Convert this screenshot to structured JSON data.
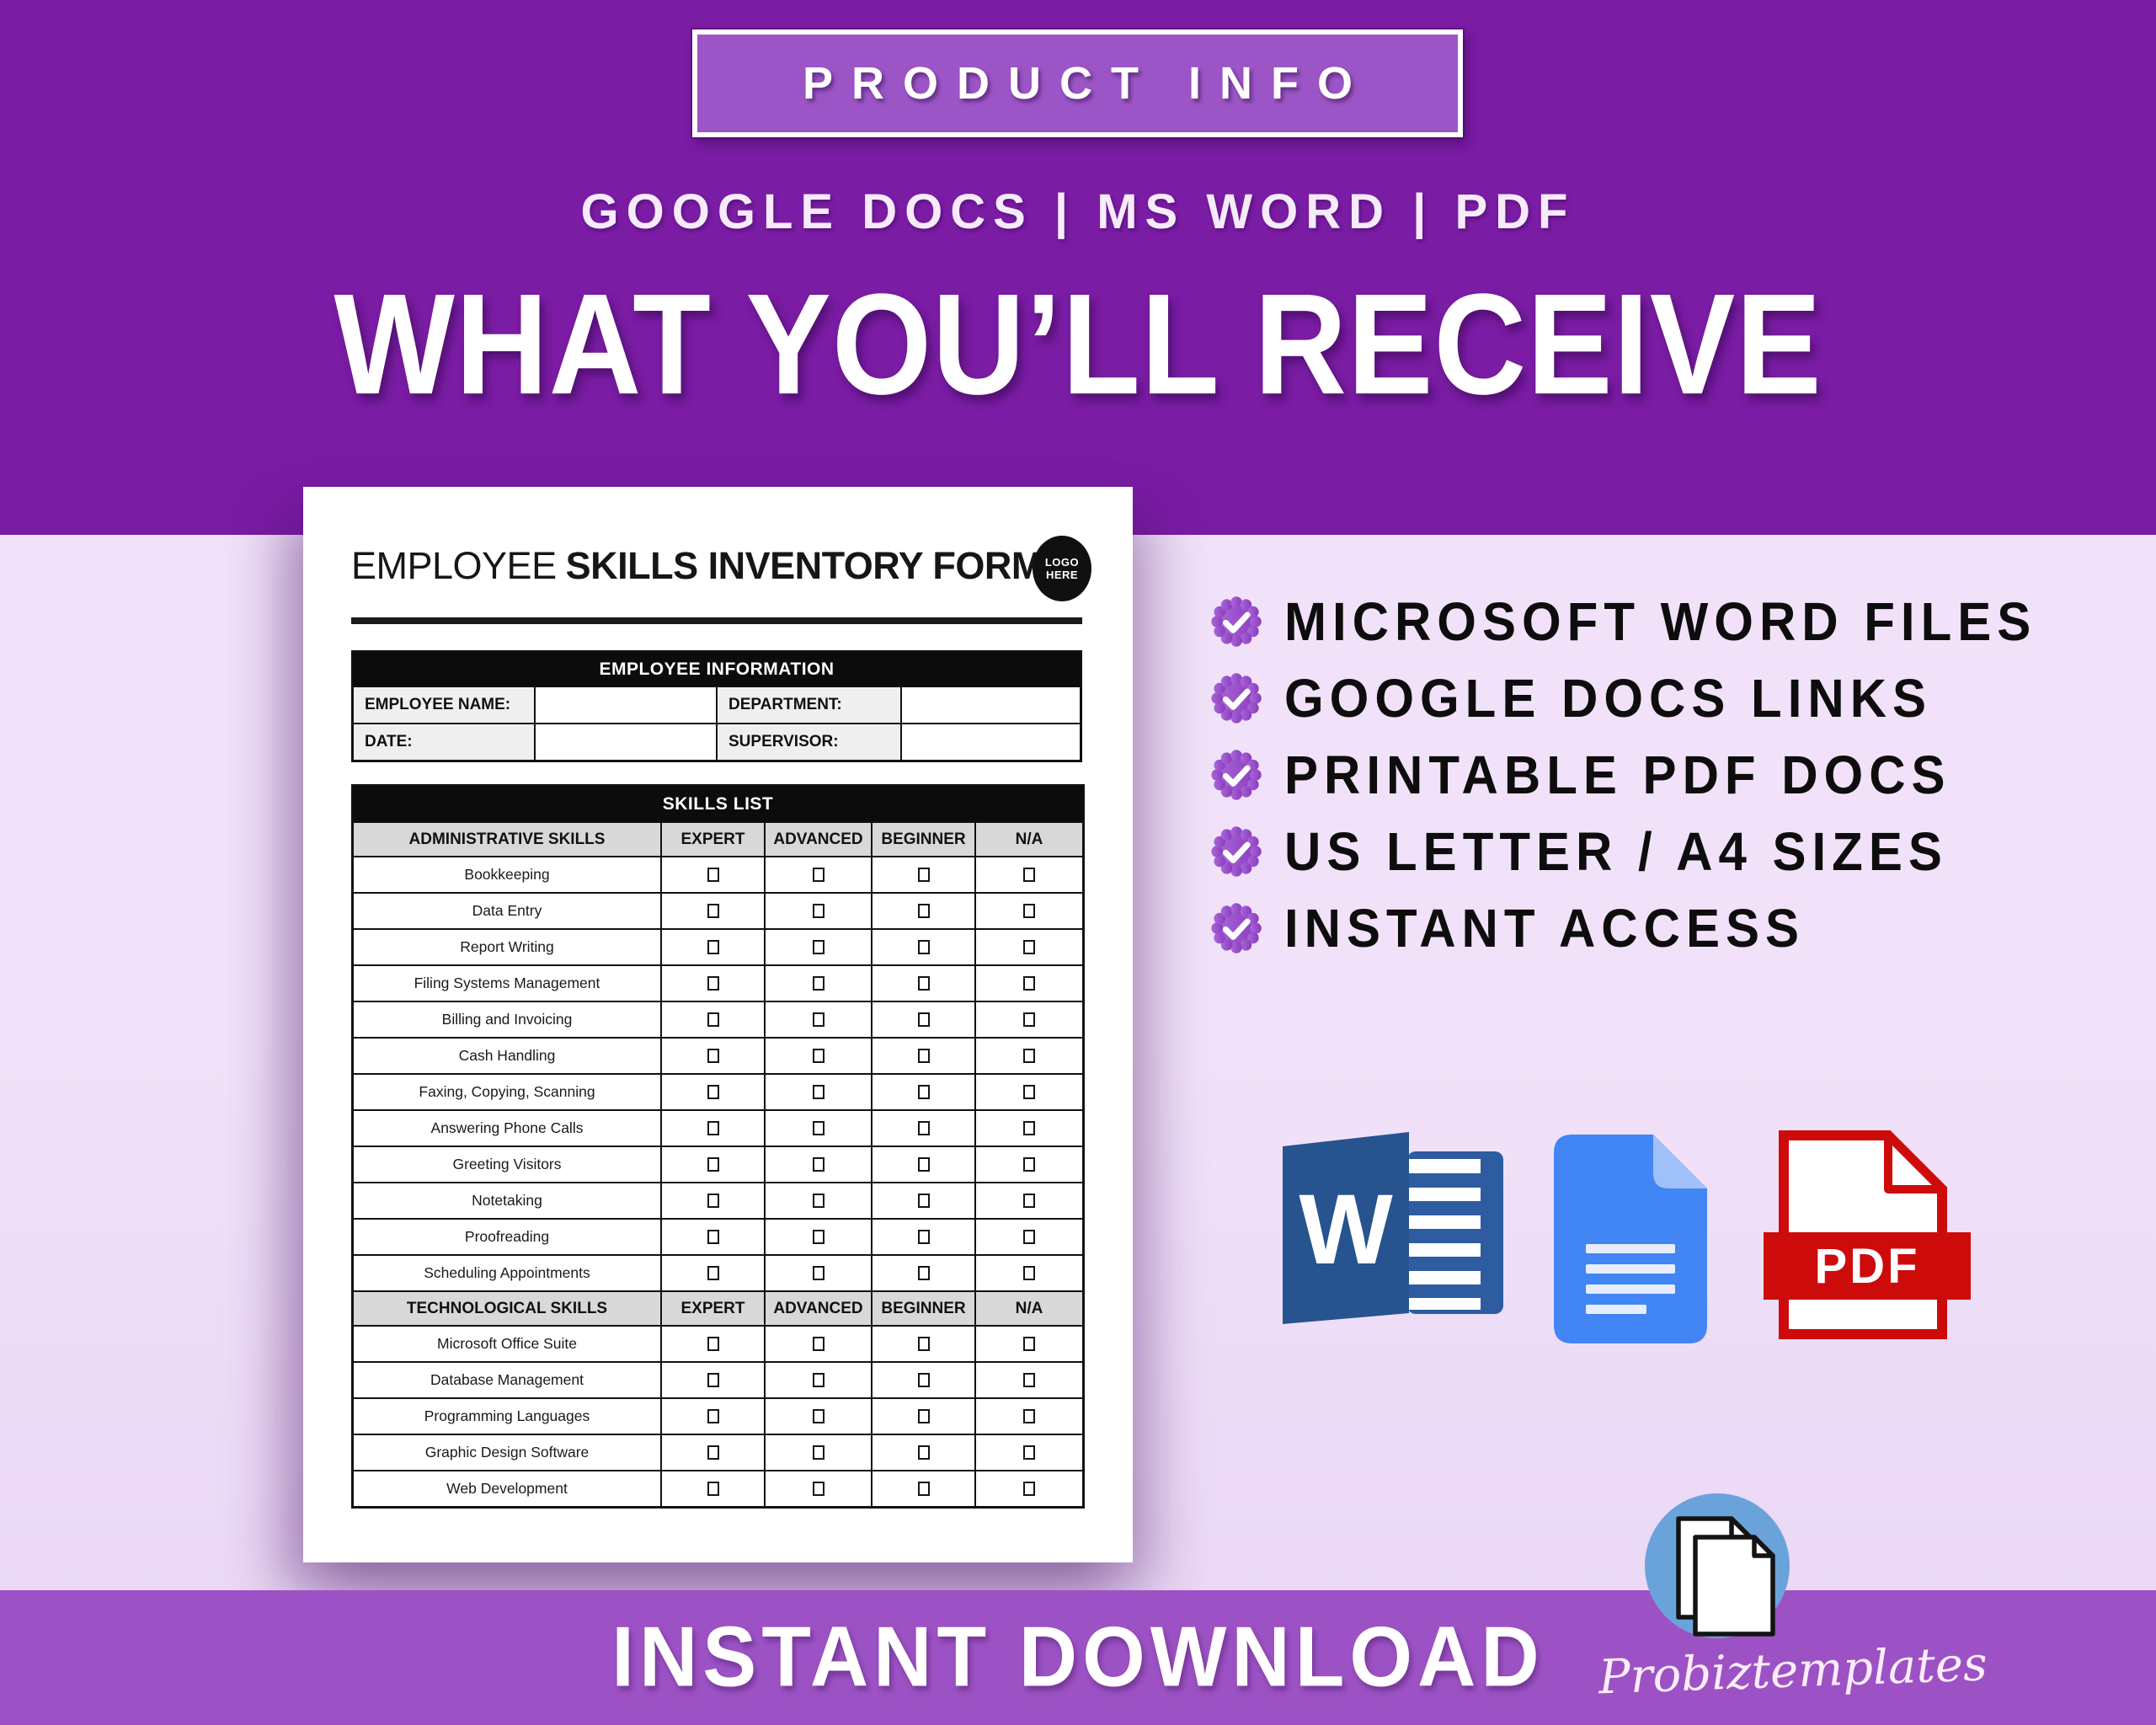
{
  "header": {
    "badge_label": "PRODUCT INFO",
    "formats_line": "GOOGLE DOCS | MS WORD | PDF",
    "main_title": "WHAT YOU’LL RECEIVE"
  },
  "document": {
    "title_prefix": "EMPLOYEE",
    "title_rest": "SKILLS INVENTORY FORM",
    "logo_line1": "LOGO",
    "logo_line2": "HERE",
    "info_header": "EMPLOYEE INFORMATION",
    "info_rows": [
      [
        "EMPLOYEE NAME:",
        "DEPARTMENT:"
      ],
      [
        "DATE:",
        "SUPERVISOR:"
      ]
    ],
    "skills_header": "SKILLS LIST",
    "level_columns": [
      "EXPERT",
      "ADVANCED",
      "BEGINNER",
      "N/A"
    ],
    "sections": [
      {
        "name": "ADMINISTRATIVE SKILLS",
        "skills": [
          "Bookkeeping",
          "Data Entry",
          "Report Writing",
          "Filing Systems Management",
          "Billing and Invoicing",
          "Cash Handling",
          "Faxing, Copying, Scanning",
          "Answering Phone Calls",
          "Greeting Visitors",
          "Notetaking",
          "Proofreading",
          "Scheduling Appointments"
        ]
      },
      {
        "name": "TECHNOLOGICAL SKILLS",
        "skills": [
          "Microsoft Office Suite",
          "Database Management",
          "Programming Languages",
          "Graphic Design Software",
          "Web Development"
        ]
      }
    ]
  },
  "checklist": [
    "MICROSOFT WORD FILES",
    "GOOGLE DOCS LINKS",
    "PRINTABLE PDF DOCS",
    "US LETTER / A4 SIZES",
    "INSTANT ACCESS"
  ],
  "icons": {
    "word_letter": "W",
    "pdf_label": "PDF"
  },
  "footer": {
    "download_label": "INSTANT DOWNLOAD",
    "brand": "Probiztemplates"
  },
  "colors": {
    "purple_dark": "#7a1ca4",
    "purple_badge": "#9b55c6",
    "light_bg": "#f1e2f9",
    "light_bg_2": "#e9d6f4",
    "bottom_bar": "#9c52c4",
    "seal_a": "#aa68d8",
    "seal_b": "#8a3cbe",
    "word_blue": "#2e5ca0",
    "word_blue_dark": "#27538f",
    "docs_blue": "#4285f4",
    "docs_fold": "#9fc0f9",
    "pdf_red": "#ce0b0b",
    "stamp_blue": "#6aa3da",
    "ink": "#0d0d0d"
  }
}
